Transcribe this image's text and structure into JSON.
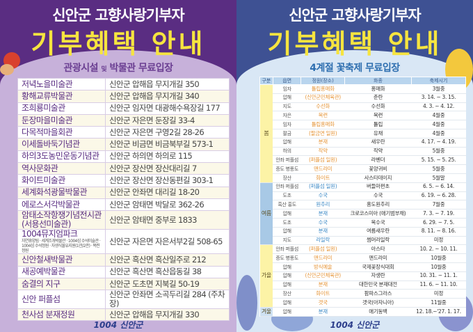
{
  "left": {
    "title_line1": "신안군 고향사랑기부자",
    "title_line2": "기부혜택 안내",
    "subtitle_a": "관광시설",
    "subtitle_and": "및",
    "subtitle_b": "박물관 무료입장",
    "rows": [
      {
        "name": "저녁노을미술관",
        "address": "신안군 압해읍 무지개길 350"
      },
      {
        "name": "황해교류박물관",
        "address": "신안군 압해읍 무지개길 340"
      },
      {
        "name": "조희룡미술관",
        "address": "신안군 임자면 대광해수욕장길 177"
      },
      {
        "name": "둔장마을미술관",
        "address": "신안군 자은면 둔장길 33-4"
      },
      {
        "name": "다목적마을회관",
        "address": "신안군 자은면 구영2길 28-26"
      },
      {
        "name": "이세돌바둑기념관",
        "address": "신안군 비금면 비금북부길 573-1"
      },
      {
        "name": "하의3도농민운동기념관",
        "address": "신안군 하의면 하의로 115"
      },
      {
        "name": "역사문화관",
        "address": "신안군 장산면 장산대리길 7"
      },
      {
        "name": "화이트미술관",
        "address": "신안군 장산면 장산동편길 303-1"
      },
      {
        "name": "세계화석광물박물관",
        "address": "신안군 안좌면 대리길 18-20"
      },
      {
        "name": "에로스서각박물관",
        "address": "신안군 암태면 박달로 362-26"
      },
      {
        "name": "암태소작항쟁기념전시관 (서용선미술관)",
        "address": "신안군 암태면 중부로 1833"
      },
      {
        "name": "1004뮤지엄파크",
        "detail": "자연휴양림 · 세계조개박물관 · 1004섬 수석미술관 · 1004섬 수석정원 · 자생식물유지원(1관/2관) · 목련정원",
        "address": "신안군 자은면 자은서부2길 508-65"
      },
      {
        "name": "신안철새박물관",
        "address": "신안군 흑산면 흑산일주로 212"
      },
      {
        "name": "새공예박물관",
        "address": "신안군 흑산면 흑산읍동길 38"
      },
      {
        "name": "숨결의 지구",
        "address": "신안군 도초면 지북길 50-19"
      },
      {
        "name": "신안 퍼플섬",
        "address": "신안군 안좌면 소곡두리길 284 (주차장)"
      },
      {
        "name": "천사섬 분재정원",
        "address": "신안군 압해읍 무지개길 330"
      }
    ],
    "logo": "1004 신안군"
  },
  "right": {
    "title_line1": "신안군 고향사랑기부자",
    "title_line2": "기부혜택 안내",
    "subtitle": "4계절 꽃축제 무료입장",
    "headers": [
      "구분",
      "읍면",
      "정원(장소)",
      "화종",
      "축제시기"
    ],
    "seasons": [
      {
        "label": "봄",
        "color": "#fcf3a6",
        "rows": [
          [
            "임자",
            "튤립홍매화",
            "홍매화",
            "3월중"
          ],
          [
            "압해",
            "(신안군민체육관)",
            "춘란",
            "3. 14. ~ 3. 15."
          ],
          [
            "지도",
            "수선화",
            "수선화",
            "4. 3. ~ 4. 12."
          ],
          [
            "자은",
            "목련",
            "목련",
            "4월중"
          ],
          [
            "임자",
            "튤립홍매화",
            "튤립",
            "4월중"
          ],
          [
            "팔금",
            "(팔금면 일원)",
            "유채",
            "4월중"
          ],
          [
            "압해",
            "분재",
            "새우란",
            "4. 17. ~ 4. 19."
          ],
          [
            "하의",
            "작약",
            "작약",
            "5월중"
          ],
          [
            "안좌 퍼플섬",
            "(퍼플섬 일원)",
            "라벤더",
            "5. 15. ~ 5. 25."
          ],
          [
            "증도 병풍도",
            "맨드라미",
            "꽃양귀비",
            "5월중"
          ],
          [
            "장산",
            "화이트",
            "사스타데이지",
            "5월말"
          ]
        ]
      },
      {
        "label": "여름",
        "color": "#a8c9e6",
        "rows": [
          [
            "안좌 퍼플섬",
            "(퍼플섬 일원)",
            "버들마편초",
            "6. 5. ~ 6. 14."
          ],
          [
            "도초",
            "수국",
            "수국",
            "6. 19. ~ 6. 28."
          ],
          [
            "흑산 홍도",
            "원추리",
            "홍도원추리",
            "7월중"
          ],
          [
            "압해",
            "분재",
            "크로코스미아 (애기범부채)",
            "7. 3. ~ 7. 19."
          ],
          [
            "도초",
            "수국",
            "목수국",
            "6. 29. ~ 7. 5."
          ],
          [
            "압해",
            "분재",
            "여름새우란",
            "8. 11. ~ 8. 16."
          ],
          [
            "지도",
            "라일락",
            "썸머라일락",
            "미정"
          ]
        ]
      },
      {
        "label": "가을",
        "color": "#fcf3a6",
        "rows": [
          [
            "안좌 퍼플섬",
            "(퍼플섬 일원)",
            "아스타",
            "10. 2. ~ 10. 11."
          ],
          [
            "증도 병풍도",
            "맨드라미",
            "맨드라미",
            "10월중"
          ],
          [
            "압해",
            "방식예술",
            "국제꽃장식대회",
            "10월중"
          ],
          [
            "압해",
            "(신안군민체육관)",
            "자생란",
            "10. 31. ~ 11. 1."
          ],
          [
            "압해",
            "분재",
            "대한민국 분재대전",
            "11. 6. ~ 11. 10."
          ],
          [
            "장산",
            "화이트",
            "팜파스그라스",
            "미정"
          ],
          [
            "압해",
            "갯국",
            "갯국(아자니아)",
            "11월중"
          ]
        ]
      },
      {
        "label": "겨울",
        "color": "#cfe2f3",
        "rows": [
          [
            "압해",
            "분재",
            "애기동백",
            "12. 18.~'27. 1. 17."
          ]
        ]
      }
    ],
    "logo": "1004 신안군"
  },
  "colors": {
    "left_bg": "#5a2d82",
    "right_bg": "#3e5193",
    "title_yellow": "#f6e43f",
    "warm_place": "#e6963a",
    "cool_place": "#3f8bc7"
  }
}
